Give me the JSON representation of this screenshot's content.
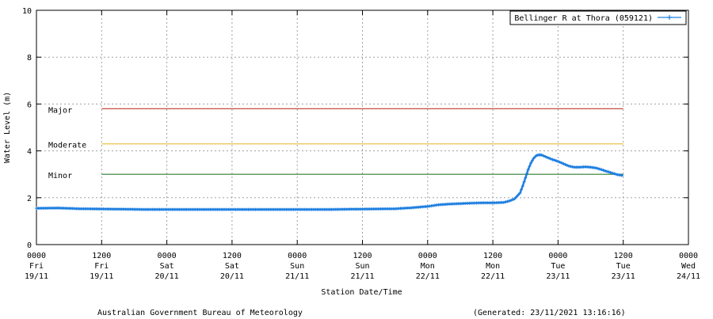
{
  "chart_data": {
    "type": "line",
    "ylabel": "Water Level (m)",
    "xlabel": "Station Date/Time",
    "ylim": [
      0,
      10
    ],
    "yticks": [
      "0",
      "2",
      "4",
      "6",
      "8",
      "10"
    ],
    "x_unit": "hours since 0000 Fri 19/11",
    "xlim": [
      0,
      120
    ],
    "xticks": [
      {
        "x": 0,
        "time": "0000",
        "day": "Fri",
        "date": "19/11"
      },
      {
        "x": 12,
        "time": "1200",
        "day": "Fri",
        "date": "19/11"
      },
      {
        "x": 24,
        "time": "0000",
        "day": "Sat",
        "date": "20/11"
      },
      {
        "x": 36,
        "time": "1200",
        "day": "Sat",
        "date": "20/11"
      },
      {
        "x": 48,
        "time": "0000",
        "day": "Sun",
        "date": "21/11"
      },
      {
        "x": 60,
        "time": "1200",
        "day": "Sun",
        "date": "21/11"
      },
      {
        "x": 72,
        "time": "0000",
        "day": "Mon",
        "date": "22/11"
      },
      {
        "x": 84,
        "time": "1200",
        "day": "Mon",
        "date": "22/11"
      },
      {
        "x": 96,
        "time": "0000",
        "day": "Tue",
        "date": "23/11"
      },
      {
        "x": 108,
        "time": "1200",
        "day": "Tue",
        "date": "23/11"
      },
      {
        "x": 120,
        "time": "0000",
        "day": "Wed",
        "date": "24/11"
      }
    ],
    "grid": true,
    "legend_position": "top-right",
    "series": [
      {
        "name": "Bellinger R at Thora (059121)",
        "color": "#1e7fe0",
        "points": [
          [
            0,
            1.55
          ],
          [
            4,
            1.56
          ],
          [
            8,
            1.53
          ],
          [
            12,
            1.52
          ],
          [
            16,
            1.51
          ],
          [
            20,
            1.5
          ],
          [
            24,
            1.5
          ],
          [
            30,
            1.5
          ],
          [
            36,
            1.5
          ],
          [
            42,
            1.5
          ],
          [
            48,
            1.5
          ],
          [
            54,
            1.5
          ],
          [
            58,
            1.51
          ],
          [
            62,
            1.52
          ],
          [
            66,
            1.53
          ],
          [
            69,
            1.57
          ],
          [
            72,
            1.63
          ],
          [
            74,
            1.7
          ],
          [
            76,
            1.73
          ],
          [
            78,
            1.75
          ],
          [
            80,
            1.77
          ],
          [
            82,
            1.78
          ],
          [
            84,
            1.78
          ],
          [
            86,
            1.8
          ],
          [
            87,
            1.86
          ],
          [
            88,
            1.95
          ],
          [
            89,
            2.2
          ],
          [
            89.5,
            2.5
          ],
          [
            90,
            2.85
          ],
          [
            90.5,
            3.2
          ],
          [
            91,
            3.48
          ],
          [
            91.5,
            3.68
          ],
          [
            92,
            3.8
          ],
          [
            92.5,
            3.83
          ],
          [
            93,
            3.82
          ],
          [
            94,
            3.72
          ],
          [
            95,
            3.63
          ],
          [
            96,
            3.55
          ],
          [
            97,
            3.45
          ],
          [
            98,
            3.35
          ],
          [
            99,
            3.3
          ],
          [
            100,
            3.3
          ],
          [
            101,
            3.32
          ],
          [
            102,
            3.3
          ],
          [
            103,
            3.27
          ],
          [
            104,
            3.2
          ],
          [
            105,
            3.12
          ],
          [
            106,
            3.05
          ],
          [
            107,
            2.98
          ],
          [
            108,
            2.95
          ]
        ]
      }
    ],
    "thresholds": [
      {
        "label": "Major",
        "value": 5.8,
        "color": "#c0392b",
        "x_start": 12,
        "x_end": 108
      },
      {
        "label": "Moderate",
        "value": 4.3,
        "color": "#e6c34a",
        "x_start": 12,
        "x_end": 108
      },
      {
        "label": "Minor",
        "value": 3.0,
        "color": "#2e7d32",
        "x_start": 12,
        "x_end": 108
      }
    ]
  },
  "footer": {
    "source": "Australian Government Bureau of Meteorology",
    "generated": "(Generated: 23/11/2021 13:16:16)"
  }
}
